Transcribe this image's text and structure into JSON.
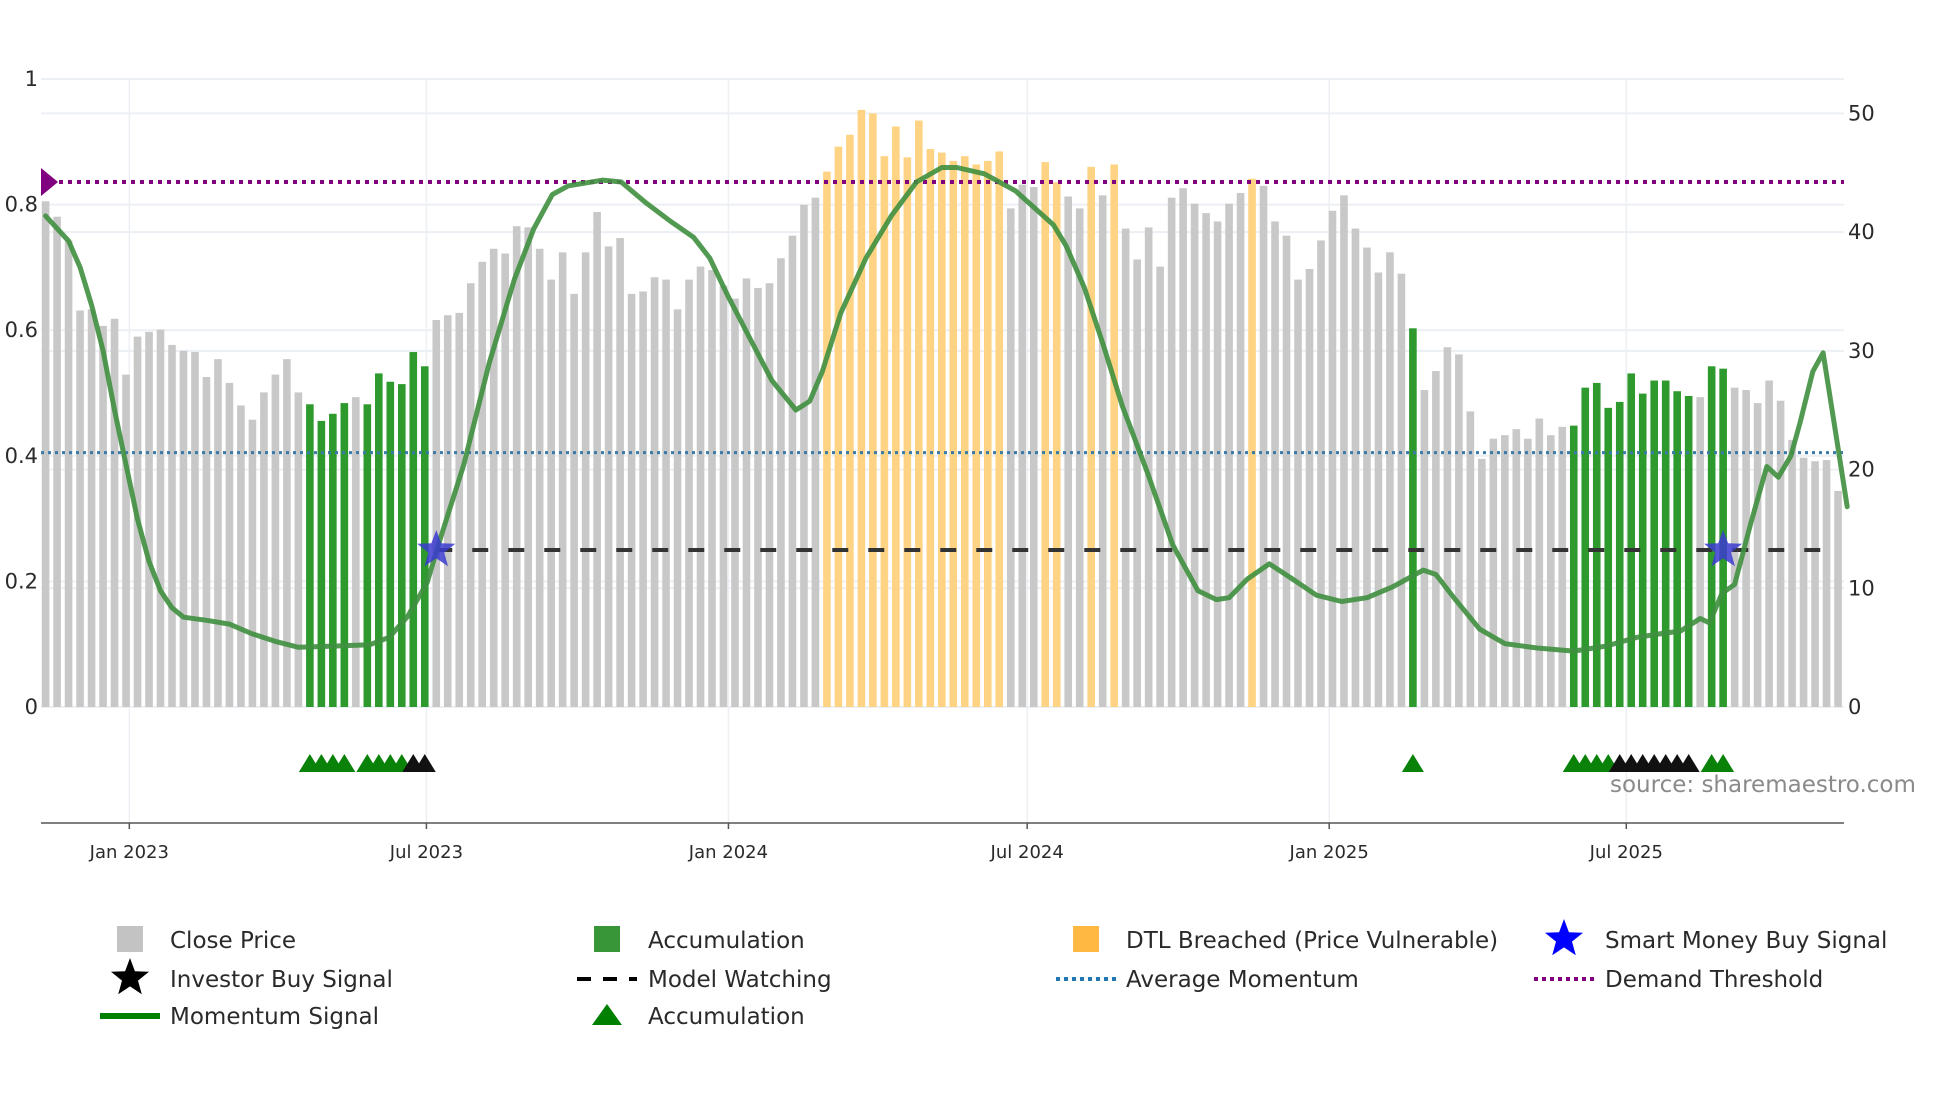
{
  "chart_data": {
    "type": "bar",
    "title": "",
    "x_start_date": "2022-11-11",
    "x_interval_days": 7,
    "x_ticks": [
      {
        "label": "Jan 2023",
        "date": "2023-01-01"
      },
      {
        "label": "Jul 2023",
        "date": "2023-07-01"
      },
      {
        "label": "Jan 2024",
        "date": "2024-01-01"
      },
      {
        "label": "Jul 2024",
        "date": "2024-07-01"
      },
      {
        "label": "Jan 2025",
        "date": "2025-01-01"
      },
      {
        "label": "Jul 2025",
        "date": "2025-07-01"
      }
    ],
    "left_axis": {
      "range": [
        0,
        1
      ],
      "ticks": [
        "0",
        "0.2",
        "0.4",
        "0.6",
        "0.8",
        "1"
      ],
      "tick_values": [
        0,
        0.2,
        0.4,
        0.6,
        0.8,
        1
      ]
    },
    "right_axis": {
      "range": [
        0,
        52.9
      ],
      "ticks": [
        "0",
        "10",
        "20",
        "30",
        "40",
        "50"
      ],
      "tick_values": [
        0,
        10,
        20,
        30,
        40,
        50
      ]
    },
    "grid": true,
    "bars": {
      "name": "Close Price",
      "values": [
        42.6,
        41.3,
        39.3,
        33.4,
        33.5,
        32.1,
        32.7,
        28.0,
        31.2,
        31.6,
        31.8,
        30.5,
        30.0,
        29.9,
        27.8,
        29.3,
        27.3,
        25.4,
        24.2,
        26.5,
        28.0,
        29.3,
        26.5,
        25.5,
        24.1,
        24.7,
        25.6,
        26.1,
        25.5,
        28.1,
        27.4,
        27.2,
        29.9,
        28.7,
        32.6,
        33.0,
        33.2,
        35.7,
        37.5,
        38.6,
        38.2,
        40.5,
        40.4,
        38.6,
        36.0,
        38.3,
        34.8,
        38.3,
        41.7,
        38.8,
        39.5,
        34.8,
        35.0,
        36.2,
        36.0,
        33.5,
        36.0,
        37.1,
        36.8,
        35.5,
        34.4,
        36.1,
        35.3,
        35.7,
        37.8,
        39.7,
        42.3,
        42.9,
        45.1,
        47.2,
        48.2,
        50.3,
        50.0,
        46.4,
        48.9,
        46.3,
        49.4,
        47.0,
        46.7,
        46.0,
        46.4,
        45.7,
        46.0,
        46.8,
        42.0,
        44.0,
        43.8,
        45.9,
        44.2,
        43.0,
        42.0,
        45.5,
        43.1,
        45.7,
        40.3,
        37.7,
        40.4,
        37.1,
        42.9,
        43.7,
        42.4,
        41.6,
        40.9,
        42.4,
        43.3,
        44.5,
        43.9,
        40.9,
        39.7,
        36.0,
        36.9,
        39.3,
        41.8,
        43.1,
        40.3,
        38.7,
        36.6,
        38.3,
        36.5,
        31.9,
        26.7,
        28.3,
        30.3,
        29.7,
        24.9,
        20.9,
        22.6,
        22.9,
        23.4,
        22.6,
        24.3,
        22.9,
        23.6,
        23.7,
        26.9,
        27.3,
        25.2,
        25.7,
        28.1,
        26.4,
        27.5,
        27.5,
        26.6,
        26.2,
        26.1,
        28.7,
        28.5,
        26.9,
        26.7,
        25.6,
        27.5,
        25.8,
        22.5,
        21.0,
        20.7,
        20.8,
        18.2
      ],
      "accumulation_indices": [
        23,
        24,
        25,
        26,
        28,
        29,
        30,
        31,
        32,
        33,
        119,
        133,
        134,
        135,
        136,
        137,
        138,
        139,
        140,
        141,
        142,
        143,
        145,
        146
      ],
      "dtl_breached_indices": [
        68,
        69,
        70,
        71,
        72,
        73,
        74,
        75,
        76,
        77,
        78,
        79,
        80,
        81,
        82,
        83,
        87,
        88,
        91,
        93,
        105
      ]
    },
    "momentum_signal": {
      "name": "Momentum Signal",
      "points": [
        [
          0,
          0.782
        ],
        [
          2,
          0.742
        ],
        [
          3,
          0.7
        ],
        [
          4,
          0.64
        ],
        [
          5,
          0.567
        ],
        [
          6,
          0.473
        ],
        [
          7,
          0.386
        ],
        [
          8,
          0.299
        ],
        [
          9,
          0.232
        ],
        [
          10,
          0.185
        ],
        [
          11,
          0.158
        ],
        [
          12,
          0.143
        ],
        [
          14,
          0.138
        ],
        [
          16,
          0.132
        ],
        [
          17.9,
          0.117
        ],
        [
          20.1,
          0.104
        ],
        [
          22,
          0.095
        ],
        [
          25,
          0.097
        ],
        [
          28.2,
          0.099
        ],
        [
          29.9,
          0.111
        ],
        [
          31.5,
          0.144
        ],
        [
          33.2,
          0.198
        ],
        [
          34.3,
          0.265
        ],
        [
          36.4,
          0.386
        ],
        [
          38.6,
          0.547
        ],
        [
          40.8,
          0.681
        ],
        [
          42.5,
          0.762
        ],
        [
          44.1,
          0.816
        ],
        [
          45.5,
          0.83
        ],
        [
          48.5,
          0.839
        ],
        [
          50.1,
          0.836
        ],
        [
          52.3,
          0.802
        ],
        [
          54.5,
          0.772
        ],
        [
          56.4,
          0.748
        ],
        [
          57.8,
          0.715
        ],
        [
          59.4,
          0.654
        ],
        [
          61.3,
          0.587
        ],
        [
          63.2,
          0.52
        ],
        [
          65.3,
          0.473
        ],
        [
          66.5,
          0.487
        ],
        [
          67.6,
          0.534
        ],
        [
          69.2,
          0.627
        ],
        [
          71.4,
          0.715
        ],
        [
          73.6,
          0.782
        ],
        [
          75.8,
          0.836
        ],
        [
          78,
          0.859
        ],
        [
          79.3,
          0.859
        ],
        [
          81.7,
          0.849
        ],
        [
          84.4,
          0.822
        ],
        [
          87.7,
          0.768
        ],
        [
          88.8,
          0.735
        ],
        [
          90.4,
          0.668
        ],
        [
          92.1,
          0.574
        ],
        [
          93.7,
          0.48
        ],
        [
          95.9,
          0.373
        ],
        [
          98.1,
          0.258
        ],
        [
          100.3,
          0.185
        ],
        [
          101.9,
          0.171
        ],
        [
          103,
          0.174
        ],
        [
          104.6,
          0.204
        ],
        [
          106.5,
          0.228
        ],
        [
          108.5,
          0.204
        ],
        [
          110.6,
          0.178
        ],
        [
          112.8,
          0.168
        ],
        [
          115,
          0.174
        ],
        [
          117.2,
          0.191
        ],
        [
          119.9,
          0.218
        ],
        [
          121,
          0.211
        ],
        [
          122.7,
          0.171
        ],
        [
          124.8,
          0.124
        ],
        [
          127,
          0.101
        ],
        [
          129.8,
          0.094
        ],
        [
          133,
          0.089
        ],
        [
          135.8,
          0.097
        ],
        [
          138.5,
          0.111
        ],
        [
          140.7,
          0.117
        ],
        [
          142.3,
          0.121
        ],
        [
          144,
          0.141
        ],
        [
          144.8,
          0.134
        ],
        [
          145.9,
          0.181
        ],
        [
          147,
          0.195
        ],
        [
          148.4,
          0.292
        ],
        [
          149.8,
          0.383
        ],
        [
          150.8,
          0.366
        ],
        [
          151.9,
          0.4
        ],
        [
          152.7,
          0.453
        ],
        [
          153.8,
          0.534
        ],
        [
          154.7,
          0.564
        ],
        [
          156,
          0.413
        ],
        [
          156.8,
          0.319
        ]
      ]
    },
    "average_momentum": 0.405,
    "demand_threshold": 0.836,
    "model_watching": {
      "value": 0.25,
      "from_index": 34,
      "to_index": 155
    },
    "smart_money_buy_indices": [
      34,
      146
    ],
    "smart_money_value": 0.25,
    "accumulation_marker_indices": [
      23,
      24,
      25,
      26,
      28,
      29,
      30,
      31,
      119,
      133,
      134,
      135,
      136,
      145,
      146
    ],
    "investor_buy_indices": [
      32,
      33,
      137,
      138,
      139,
      140,
      141,
      142,
      143
    ],
    "legend": [
      {
        "label": "Close Price",
        "type": "square",
        "color": "#bdbdbd"
      },
      {
        "label": "Accumulation",
        "type": "square",
        "color": "#228b22"
      },
      {
        "label": "DTL Breached (Price Vulnerable)",
        "type": "square",
        "color": "#ffb02e"
      },
      {
        "label": "Smart Money Buy Signal",
        "type": "star",
        "color": "#0000ff"
      },
      {
        "label": "Investor Buy Signal",
        "type": "star",
        "color": "#000000"
      },
      {
        "label": "Model Watching",
        "type": "dash",
        "color": "#000000"
      },
      {
        "label": "Average Momentum",
        "type": "dot",
        "color": "#1f77b4"
      },
      {
        "label": "Demand Threshold",
        "type": "dot",
        "color": "#800080"
      },
      {
        "label": "Momentum Signal",
        "type": "line",
        "color": "#008000"
      },
      {
        "label": "Accumulation",
        "type": "triangle",
        "color": "#008000"
      }
    ],
    "legend_position": "bottom",
    "source": "source: sharemaestro.com",
    "colors": {
      "close": "#c8c8c8",
      "accumulation": "#2e9a2e",
      "dtl": "#ffd384",
      "momentum": "#3f8f3f",
      "avg": "#3a7aa8",
      "threshold": "#800080",
      "grid": "#eceff3"
    }
  }
}
